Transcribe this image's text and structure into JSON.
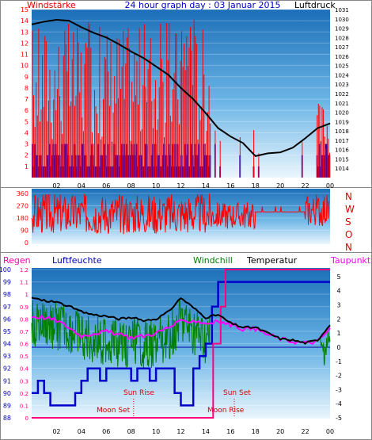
{
  "header": {
    "left_label": "Windstärke",
    "title": "24 hour graph day : 03 Januar 2015",
    "right_label": "Luftdruck"
  },
  "middle": {
    "direction_labels": [
      "N",
      "W",
      "S",
      "O",
      "N"
    ]
  },
  "lower_header": {
    "regen": "Regen",
    "luftfeuchte": "Luftfeuchte",
    "windchill": "Windchill",
    "temperatur": "Temperatur",
    "taupunkt": "Taupunkt"
  },
  "annotations": {
    "moon_set": "Moon Set",
    "sun_rise": "Sun Rise",
    "sun_set": "Sun Set",
    "moon_rise": "Moon Rise"
  },
  "colors": {
    "wind": "#ff0000",
    "gust_blue": "#0000dd",
    "pressure": "#000000",
    "humidity": "#0000cc",
    "windchill": "#008000",
    "temperature": "#000000",
    "dewpoint": "#ff00ff",
    "rain": "#ff0080",
    "sun_labels": "#cc0000"
  },
  "chart_data": [
    {
      "type": "bar",
      "name": "Windstärke / Luftdruck",
      "x_ticks": [
        "02",
        "04",
        "06",
        "08",
        "10",
        "12",
        "14",
        "16",
        "18",
        "20",
        "22",
        "00"
      ],
      "left_axis": {
        "label": "Windstärke",
        "ylim": [
          0,
          15
        ],
        "ticks": [
          1,
          2,
          3,
          4,
          5,
          6,
          7,
          8,
          9,
          10,
          11,
          12,
          13,
          14,
          15
        ]
      },
      "right_axis": {
        "label": "Luftdruck",
        "ylim": [
          1013,
          1031
        ],
        "ticks": [
          1014,
          1015,
          1016,
          1017,
          1018,
          1019,
          1020,
          1021,
          1022,
          1023,
          1024,
          1025,
          1026,
          1027,
          1028,
          1029,
          1030,
          1031
        ]
      },
      "pressure_hourly": {
        "hours": [
          0,
          1,
          2,
          3,
          4,
          5,
          6,
          7,
          8,
          9,
          10,
          11,
          12,
          13,
          14,
          15,
          16,
          17,
          18,
          19,
          20,
          21,
          22,
          23,
          24
        ],
        "values": [
          1029.4,
          1029.7,
          1029.9,
          1029.8,
          1029.1,
          1028.5,
          1028.0,
          1027.3,
          1026.5,
          1025.8,
          1024.9,
          1024.0,
          1022.6,
          1021.4,
          1019.9,
          1018.3,
          1017.4,
          1016.7,
          1015.3,
          1015.6,
          1015.7,
          1016.2,
          1017.2,
          1018.3,
          1018.8
        ]
      },
      "wind_activity_note": "dense red wind bars from 00 to 14, sparse afterwards, rising again near 24"
    },
    {
      "type": "line",
      "name": "Windrichtung",
      "y_ticks": [
        0,
        90,
        180,
        270,
        360
      ],
      "ylim": [
        0,
        360
      ],
      "direction_labels": [
        "N",
        "W",
        "S",
        "O",
        "N"
      ],
      "segments": [
        {
          "from": 0,
          "to": 14.5,
          "behavior": "highly variable 60-360"
        },
        {
          "from": 14.5,
          "to": 18,
          "behavior": "variable 80-300"
        },
        {
          "from": 18,
          "to": 22,
          "behavior": "steady ~ 220-270"
        },
        {
          "from": 22,
          "to": 24,
          "behavior": "variable 120-360"
        }
      ]
    },
    {
      "type": "line",
      "name": "Temperatur / Feuchte",
      "x_ticks": [
        "02",
        "04",
        "06",
        "08",
        "10",
        "12",
        "14",
        "16",
        "18",
        "20",
        "22",
        "00"
      ],
      "left_axis_rain": {
        "label": "Regen",
        "ylim": [
          0,
          1.2
        ],
        "ticks": [
          0,
          0.1,
          0.2,
          0.3,
          0.4,
          0.5,
          0.6,
          0.7,
          0.8,
          0.9,
          1,
          1.1,
          1.2
        ]
      },
      "left_axis_humidity": {
        "label": "Luftfeuchte",
        "ylim": [
          88,
          100
        ],
        "ticks": [
          88,
          89,
          90,
          91,
          92,
          93,
          94,
          95,
          96,
          97,
          98,
          99,
          100
        ]
      },
      "right_axis_temp": {
        "label": "Temperatur",
        "ylim": [
          -5,
          5.5
        ],
        "ticks": [
          -5,
          -4,
          -3,
          -2,
          -1,
          0,
          1,
          2,
          3,
          4,
          5
        ]
      },
      "series": [
        {
          "name": "Temperatur",
          "x": [
            0,
            1,
            2,
            3,
            4,
            5,
            6,
            7,
            8,
            9,
            10,
            11,
            12,
            13,
            14,
            15,
            16,
            17,
            18,
            19,
            20,
            21,
            22,
            23,
            24
          ],
          "values": [
            3.5,
            3.3,
            3.2,
            2.9,
            2.5,
            2.3,
            2.2,
            2.0,
            2.1,
            1.9,
            2.0,
            2.5,
            3.5,
            2.8,
            2.1,
            2.3,
            1.7,
            1.4,
            1.4,
            1.0,
            0.6,
            0.5,
            0.3,
            0.5,
            1.6
          ]
        },
        {
          "name": "Taupunkt",
          "x": [
            0,
            1,
            2,
            3,
            4,
            5,
            6,
            7,
            8,
            9,
            10,
            11,
            12,
            13,
            14,
            15,
            16,
            17,
            18,
            19,
            20,
            21,
            22,
            23,
            24
          ],
          "values": [
            2.2,
            2.1,
            1.9,
            1.4,
            0.8,
            1.0,
            1.1,
            0.9,
            0.7,
            0.8,
            1.0,
            1.4,
            1.8,
            1.9,
            1.7,
            1.8,
            1.6,
            1.3,
            1.3,
            0.9,
            0.6,
            0.4,
            0.3,
            0.4,
            1.3
          ]
        },
        {
          "name": "Luftfeuchte",
          "x": [
            0,
            0.5,
            1,
            1.5,
            2.5,
            3.5,
            4,
            4.5,
            5,
            5.5,
            6,
            7,
            8,
            8.5,
            9,
            9.5,
            10,
            11,
            11.5,
            12,
            13,
            13.5,
            14,
            14.5,
            15,
            15.5,
            16,
            22,
            24
          ],
          "values": [
            90,
            91,
            90,
            89,
            89,
            90,
            91,
            92,
            92,
            91,
            92,
            92,
            91,
            92,
            92,
            91,
            92,
            92,
            90,
            89,
            92,
            93,
            94,
            97,
            99,
            99,
            99,
            99,
            99
          ]
        },
        {
          "name": "Regen",
          "x": [
            0,
            14.4,
            14.6,
            15.2,
            15.6,
            24
          ],
          "values": [
            0,
            0,
            0.6,
            0.9,
            1.2,
            1.2
          ]
        }
      ]
    }
  ]
}
